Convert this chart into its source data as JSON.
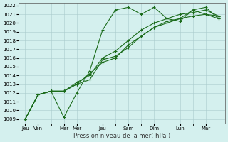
{
  "title": "",
  "xlabel": "Pression niveau de la mer( hPa )",
  "ylabel": "",
  "ylim": [
    1009,
    1022
  ],
  "yticks": [
    1009,
    1010,
    1011,
    1012,
    1013,
    1014,
    1015,
    1016,
    1017,
    1018,
    1019,
    1020,
    1021,
    1022
  ],
  "xtick_positions": [
    0,
    1,
    3,
    4,
    6,
    8,
    10,
    12,
    14
  ],
  "xtick_labels": [
    "Jeu",
    "Ven",
    "Mar",
    "Mer",
    "Jeu",
    "Sam",
    "Dim",
    "Lun",
    "Mar"
  ],
  "background_color": "#d4f0ee",
  "grid_major_color": "#aacccc",
  "grid_minor_color": "#c8e8e6",
  "line_color": "#1a6b1a",
  "series": [
    [
      1009.0,
      1011.8,
      1012.2,
      1009.2,
      1012.0,
      1014.5,
      1019.2,
      1021.5,
      1021.8,
      1021.0,
      1021.8,
      1020.5,
      1020.2,
      1021.5,
      1021.0,
      1020.8
    ],
    [
      1009.0,
      1011.8,
      1012.2,
      1012.2,
      1013.0,
      1013.5,
      1015.8,
      1016.2,
      1017.2,
      1018.5,
      1019.5,
      1020.2,
      1020.5,
      1020.8,
      1021.0,
      1020.5
    ],
    [
      1009.0,
      1011.8,
      1012.2,
      1012.2,
      1013.2,
      1014.0,
      1016.0,
      1016.8,
      1018.0,
      1019.2,
      1020.0,
      1020.5,
      1021.0,
      1021.2,
      1021.5,
      1020.8
    ],
    [
      1009.0,
      1011.8,
      1012.2,
      1012.2,
      1013.0,
      1014.2,
      1015.5,
      1016.0,
      1017.5,
      1018.5,
      1019.5,
      1020.0,
      1020.5,
      1021.5,
      1021.8,
      1020.5
    ]
  ],
  "n_points": 16
}
